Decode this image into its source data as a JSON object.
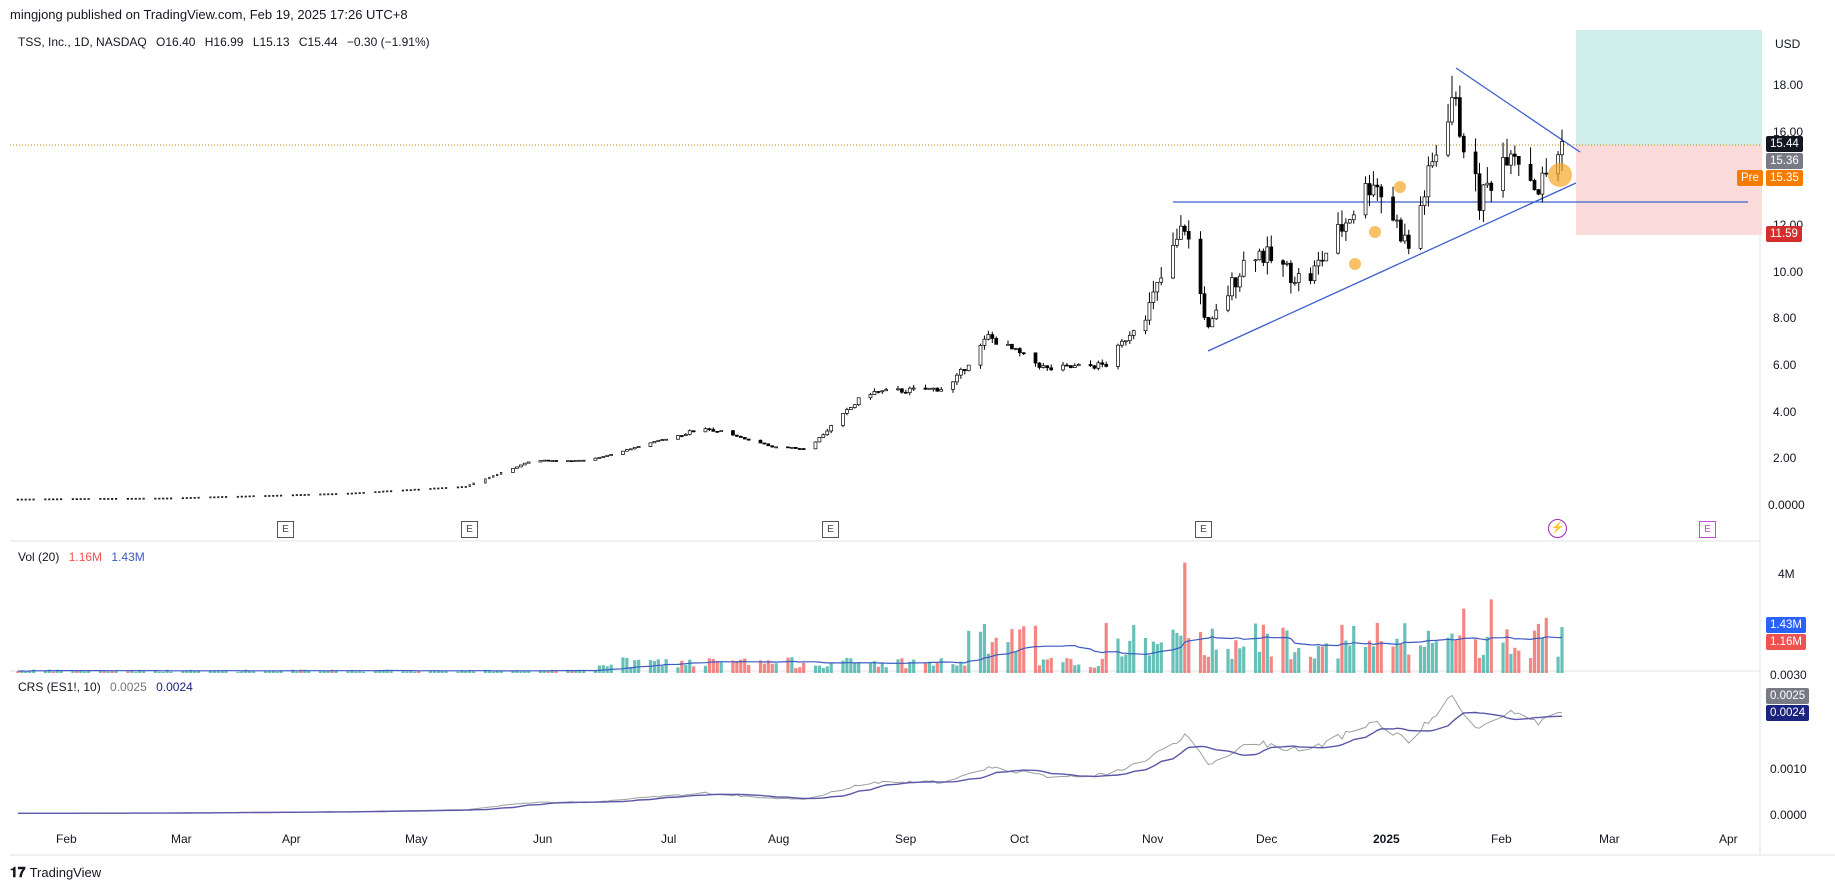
{
  "header": {
    "published": "mingjong published on TradingView.com, Feb 19, 2025 17:26 UTC+8",
    "symbol": "TSS, Inc., 1D, NASDAQ",
    "open": "O16.40",
    "high": "H16.99",
    "low": "L15.13",
    "close": "C15.44",
    "change": "−0.30 (−1.91%)"
  },
  "price_axis": {
    "currency": "USD",
    "ticks": [
      "18.00",
      "16.00",
      "12.00",
      "10.00",
      "8.00",
      "6.00",
      "4.00",
      "2.00",
      "0.0000"
    ],
    "last_tag": "15.44",
    "tag_2": "15.36",
    "pre_label": "Pre",
    "pre_value": "15.35",
    "stop_tag": "11.59"
  },
  "volume_pane": {
    "title": "Vol (20)",
    "vol": "1.16M",
    "ma": "1.43M",
    "axis_label": "4M",
    "axis_label_cut": "0.0030",
    "tag_ma": "1.43M",
    "tag_vol": "1.16M"
  },
  "crs_pane": {
    "title": "CRS (ES1!, 10)",
    "v1": "0.0025",
    "v2": "0.0024",
    "ticks": [
      "0.0010",
      "0.0000"
    ],
    "tag_1": "0.0025",
    "tag_2": "0.0024"
  },
  "time_axis": [
    "Feb",
    "Mar",
    "Apr",
    "May",
    "Jun",
    "Jul",
    "Aug",
    "Sep",
    "Oct",
    "Nov",
    "Dec",
    "2025",
    "Feb",
    "Mar",
    "Apr"
  ],
  "earnings_markers": [
    "E",
    "E",
    "E",
    "E",
    "E"
  ],
  "brand": "TradingView",
  "colors": {
    "up": "#26a69a",
    "down": "#ef5350",
    "candle": "#000000",
    "trendline": "#2962ff",
    "target_zone": "#cfeee9",
    "stop_zone": "#fbdada",
    "ma": "#3c5ac2"
  },
  "chart_data": {
    "type": "candlestick",
    "symbol": "TSS",
    "interval": "1D",
    "ylim": [
      0,
      20
    ],
    "x_range": [
      "2024-01-20",
      "2025-04-15"
    ],
    "close_series_approx": [
      {
        "date": "2024-01-20",
        "close": 0.25
      },
      {
        "date": "2024-03-01",
        "close": 0.3
      },
      {
        "date": "2024-04-15",
        "close": 0.5
      },
      {
        "date": "2024-05-15",
        "close": 0.8
      },
      {
        "date": "2024-06-01",
        "close": 1.9
      },
      {
        "date": "2024-06-15",
        "close": 1.9
      },
      {
        "date": "2024-07-15",
        "close": 3.3
      },
      {
        "date": "2024-08-01",
        "close": 2.5
      },
      {
        "date": "2024-08-10",
        "close": 2.4
      },
      {
        "date": "2024-08-25",
        "close": 4.8
      },
      {
        "date": "2024-09-15",
        "close": 5.0
      },
      {
        "date": "2024-09-25",
        "close": 7.2
      },
      {
        "date": "2024-10-10",
        "close": 5.8
      },
      {
        "date": "2024-10-25",
        "close": 6.0
      },
      {
        "date": "2024-11-05",
        "close": 8.5
      },
      {
        "date": "2024-11-14",
        "close": 12.0
      },
      {
        "date": "2024-11-20",
        "close": 7.5
      },
      {
        "date": "2024-12-01",
        "close": 11.0
      },
      {
        "date": "2024-12-15",
        "close": 9.5
      },
      {
        "date": "2025-01-01",
        "close": 14.0
      },
      {
        "date": "2025-01-10",
        "close": 11.0
      },
      {
        "date": "2025-01-21",
        "close": 17.5
      },
      {
        "date": "2025-01-28",
        "close": 13.0
      },
      {
        "date": "2025-02-05",
        "close": 15.5
      },
      {
        "date": "2025-02-12",
        "close": 13.5
      },
      {
        "date": "2025-02-18",
        "close": 15.44
      }
    ],
    "last": {
      "open": 16.4,
      "high": 16.99,
      "low": 15.13,
      "close": 15.44,
      "change": -0.3,
      "change_pct": -1.91
    },
    "levels": {
      "horizontal": 12.9,
      "target_top": 20,
      "entry": 15.44,
      "stop": 11.59
    }
  }
}
